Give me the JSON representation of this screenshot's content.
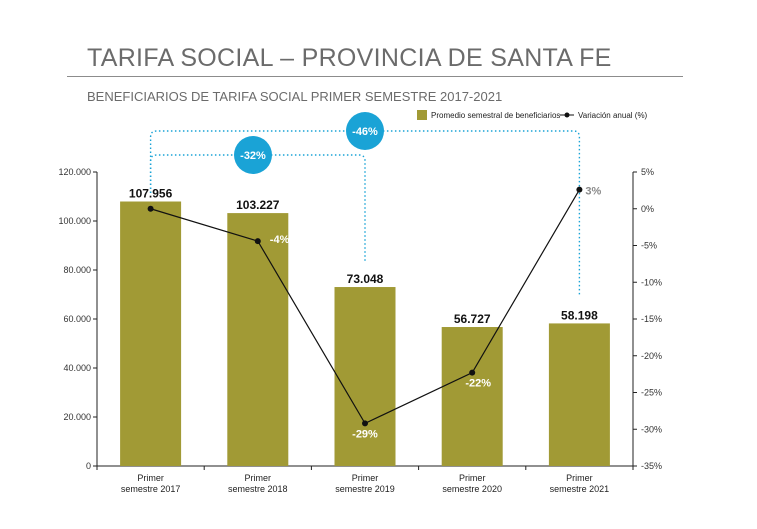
{
  "header": {
    "title": "TARIFA SOCIAL – PROVINCIA DE SANTA FE",
    "subtitle": "BENEFICIARIOS DE TARIFA SOCIAL PRIMER SEMESTRE 2017-2021"
  },
  "chart_data": {
    "type": "bar",
    "categories": [
      [
        "Primer",
        "semestre 2017"
      ],
      [
        "Primer",
        "semestre 2018"
      ],
      [
        "Primer",
        "semestre 2019"
      ],
      [
        "Primer",
        "semestre 2020"
      ],
      [
        "Primer",
        "semestre 2021"
      ]
    ],
    "series": [
      {
        "name": "Promedio semestral de beneficiarios",
        "type": "bar",
        "axis": "left",
        "values": [
          107956,
          103227,
          73048,
          56727,
          58198
        ],
        "labels": [
          "107.956",
          "103.227",
          "73.048",
          "56.727",
          "58.198"
        ],
        "color": "#a19a35"
      },
      {
        "name": "Variación anual (%)",
        "type": "line",
        "axis": "right",
        "values": [
          0,
          -4.4,
          -29.2,
          -22.3,
          2.6
        ],
        "labels": [
          "",
          "-4%",
          "-29%",
          "-22%",
          "3%"
        ],
        "color": "#111111"
      }
    ],
    "left_axis": {
      "range": [
        0,
        120000
      ],
      "ticks": [
        "0",
        "20.000",
        "40.000",
        "60.000",
        "80.000",
        "100.000",
        "120.000"
      ]
    },
    "right_axis": {
      "range": [
        -35,
        5
      ],
      "ticks": [
        "5%",
        "0%",
        "-5%",
        "-10%",
        "-15%",
        "-20%",
        "-25%",
        "-30%",
        "-35%"
      ]
    },
    "annotations": [
      {
        "text": "-46%",
        "from_category": 0,
        "to_category": 4,
        "color": "#1aa3d6"
      },
      {
        "text": "-32%",
        "from_category": 0,
        "to_category": 2,
        "color": "#1aa3d6"
      }
    ],
    "legend": "top-right",
    "grid": false
  }
}
